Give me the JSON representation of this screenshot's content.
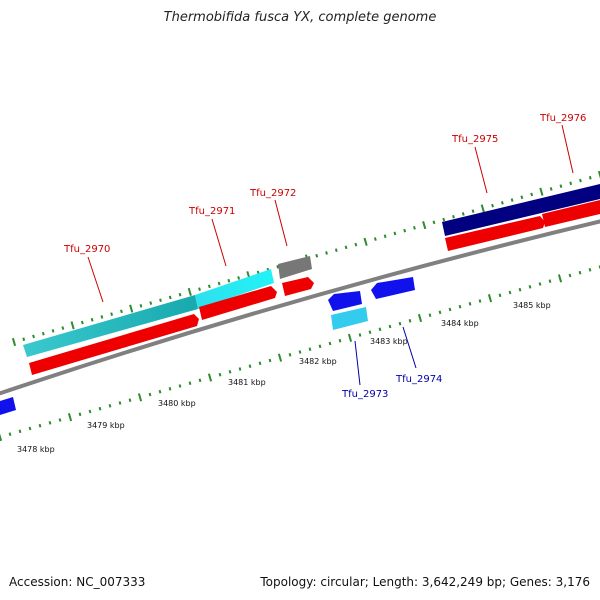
{
  "title": "Thermobifida fusca YX, complete genome",
  "footer": {
    "accession": "Accession: NC_007333",
    "topology": "Topology: circular; Length: 3,642,249 bp; Genes: 3,176"
  },
  "scale_labels": [
    "3478 kbp",
    "3479 kbp",
    "3480 kbp",
    "3481 kbp",
    "3482 kbp",
    "3483 kbp",
    "3484 kbp",
    "3485 kbp"
  ],
  "gene_labels": [
    {
      "text": "Tfu_2970",
      "strand": "forward"
    },
    {
      "text": "Tfu_2971",
      "strand": "forward"
    },
    {
      "text": "Tfu_2972",
      "strand": "forward"
    },
    {
      "text": "Tfu_2975",
      "strand": "forward"
    },
    {
      "text": "Tfu_2976",
      "strand": "forward"
    },
    {
      "text": "Tfu_2973",
      "strand": "reverse"
    },
    {
      "text": "Tfu_2974",
      "strand": "reverse"
    }
  ],
  "colors": {
    "forward_label": "#cc0000",
    "reverse_label": "#0000aa",
    "ticks": "#2e8b2e",
    "backbone": "#808080",
    "cds_red": "#ee0000",
    "cds_blue": "#1111ee",
    "cyan": "#22ddee",
    "teal": "#22bbbb",
    "light_blue": "#33ccee",
    "navy": "#000080",
    "grey": "#777777"
  }
}
